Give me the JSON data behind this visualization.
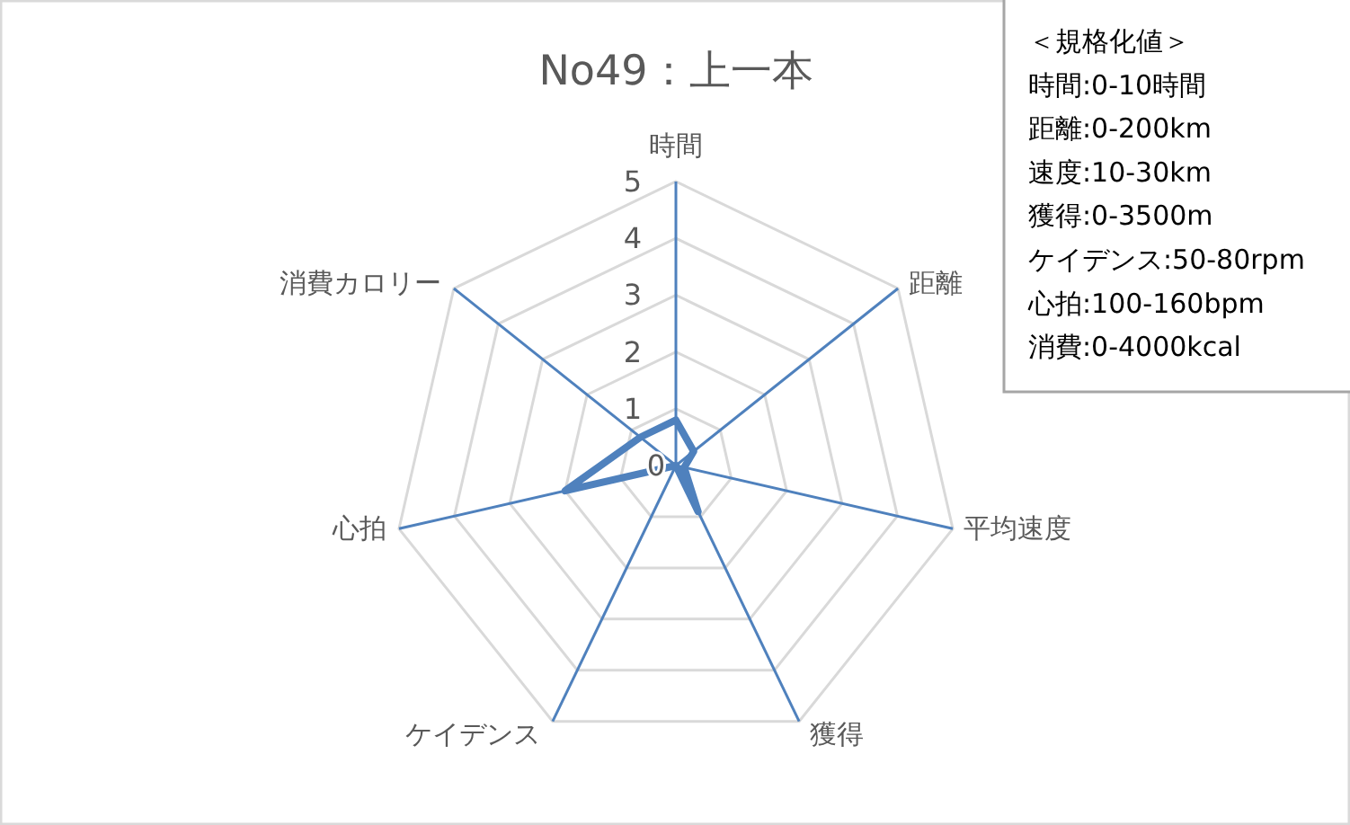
{
  "chart_data": {
    "type": "radar",
    "title": "No49：上一本",
    "categories": [
      "時間",
      "距離",
      "平均速度",
      "獲得",
      "ケイデンス",
      "心拍",
      "消費カロリー"
    ],
    "series": [
      {
        "color": "#4f81bd",
        "values": [
          0.8,
          0.4,
          0.15,
          0.9,
          0,
          2.0,
          0.8
        ]
      }
    ],
    "ylim": [
      0,
      5
    ],
    "yticks": [
      0,
      1,
      2,
      3,
      4,
      5
    ],
    "grid": true,
    "annotations": [
      "＜規格化値＞",
      "時間:0-10時間",
      "距離:0-200km",
      "速度:10-30km",
      "獲得:0-3500m",
      "ケイデンス:50-80rpm",
      "心拍:100-160bpm",
      "消費:0-4000kcal"
    ]
  }
}
